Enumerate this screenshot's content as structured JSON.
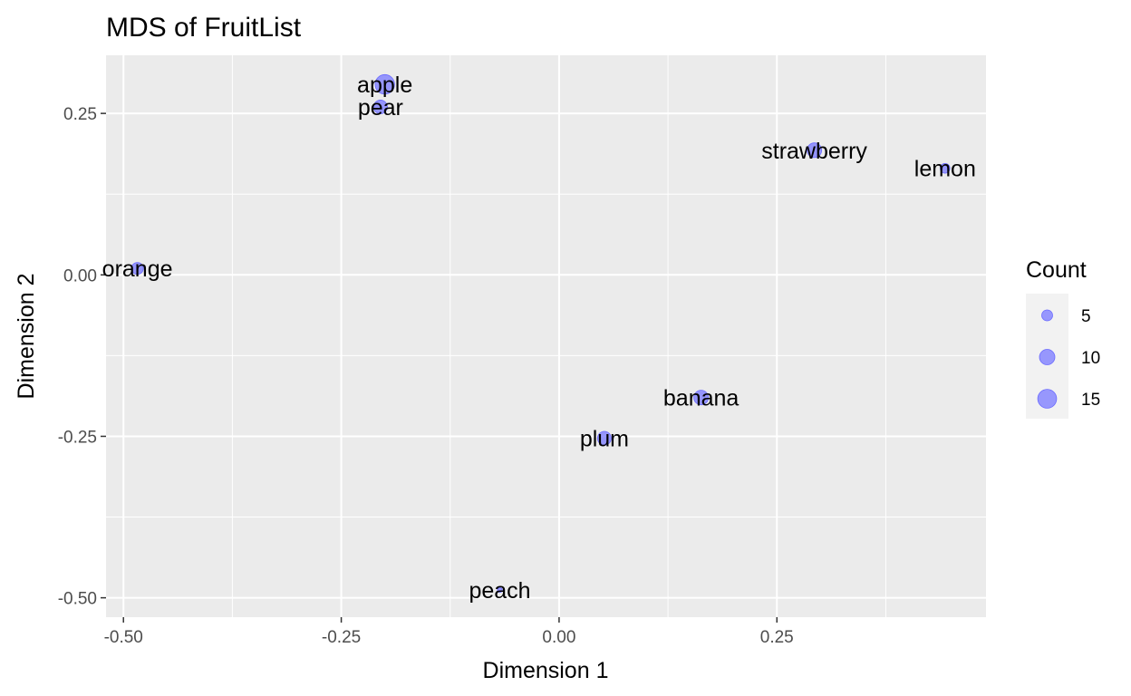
{
  "chart_data": {
    "type": "scatter",
    "title": "MDS of FruitList",
    "xlabel": "Dimension 1",
    "ylabel": "Dimension 2",
    "xlim": [
      -0.52,
      0.49
    ],
    "ylim": [
      -0.53,
      0.34
    ],
    "x_ticks": [
      -0.5,
      -0.25,
      0.0,
      0.25
    ],
    "x_tick_labels": [
      "-0.50",
      "-0.25",
      "0.00",
      "0.25"
    ],
    "y_ticks": [
      -0.5,
      -0.25,
      0.0,
      0.25
    ],
    "y_tick_labels": [
      "-0.50",
      "-0.25",
      "0.00",
      "0.25"
    ],
    "grid": true,
    "legend": {
      "title": "Count",
      "position": "right",
      "entries": [
        {
          "label": "5",
          "value": 5
        },
        {
          "label": "10",
          "value": 10
        },
        {
          "label": "15",
          "value": 15
        }
      ]
    },
    "point_color": "#8080ff",
    "panel_background": "#ebebeb",
    "grid_color": "#ffffff",
    "points": [
      {
        "label": "apple",
        "x": -0.2,
        "y": 0.295,
        "count": 16
      },
      {
        "label": "pear",
        "x": -0.205,
        "y": 0.26,
        "count": 8
      },
      {
        "label": "strawberry",
        "x": 0.293,
        "y": 0.193,
        "count": 9
      },
      {
        "label": "lemon",
        "x": 0.443,
        "y": 0.165,
        "count": 4
      },
      {
        "label": "orange",
        "x": -0.484,
        "y": 0.01,
        "count": 6
      },
      {
        "label": "banana",
        "x": 0.163,
        "y": -0.19,
        "count": 9
      },
      {
        "label": "plum",
        "x": 0.052,
        "y": -0.253,
        "count": 8
      },
      {
        "label": "peach",
        "x": -0.068,
        "y": -0.488,
        "count": 1
      }
    ]
  }
}
